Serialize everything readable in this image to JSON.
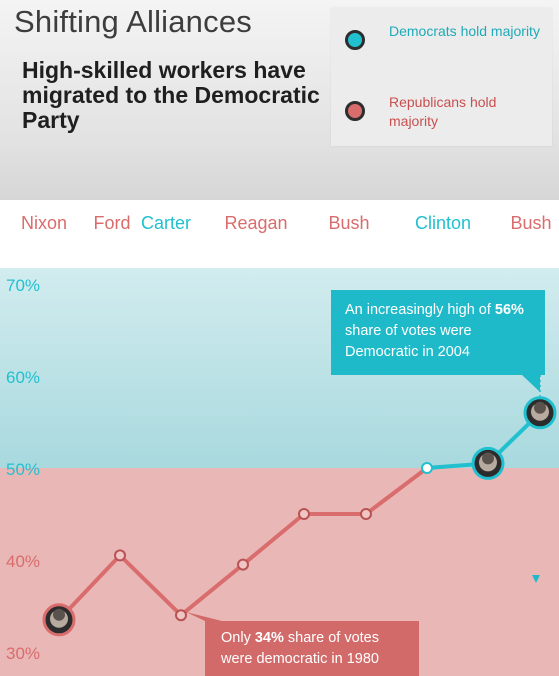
{
  "header": {
    "title": "Shifting Alliances",
    "subtitle": "High-skilled workers have migrated to the Democratic Party"
  },
  "legend": {
    "democrats": {
      "label": "Democrats hold majority",
      "color": "#21c0cf"
    },
    "republicans": {
      "label": "Republicans hold majority",
      "color": "#d96c6c"
    }
  },
  "annotations": {
    "dem": {
      "pre": "An increasingly high of ",
      "bold": "56%",
      "post": " share of votes were Democratic in 2004"
    },
    "rep": {
      "pre": "Only ",
      "bold": "34%",
      "post": " share of votes were democratic in 1980"
    }
  },
  "chart_data": {
    "type": "line",
    "title": "Shifting Alliances",
    "subtitle": "High-skilled workers have migrated to the Democratic Party",
    "presidents": [
      {
        "name": "Nixon",
        "party": "R"
      },
      {
        "name": "Ford",
        "party": "R"
      },
      {
        "name": "Carter",
        "party": "D"
      },
      {
        "name": "Reagan",
        "party": "R"
      },
      {
        "name": "Bush",
        "party": "R"
      },
      {
        "name": "Clinton",
        "party": "D"
      },
      {
        "name": "Bush",
        "party": "R"
      }
    ],
    "yticks": [
      "70%",
      "60%",
      "50%",
      "40%",
      "30%"
    ],
    "yticks_values": [
      70,
      60,
      50,
      40,
      30
    ],
    "ylim": [
      30,
      70
    ],
    "series": [
      {
        "values": [
          33.5,
          40.5,
          34,
          39.5,
          45,
          45,
          50,
          50.5,
          56
        ],
        "segment_party": [
          "R",
          "R",
          "R",
          "R",
          "R",
          "R",
          "D",
          "D"
        ],
        "portraits": [
          0,
          7,
          8
        ]
      }
    ],
    "threshold": 50,
    "colors": {
      "dem": "#21c0cf",
      "rep": "#d96c6c",
      "dem_zone": "#a8d9de",
      "rep_zone": "#eab7b7"
    }
  }
}
